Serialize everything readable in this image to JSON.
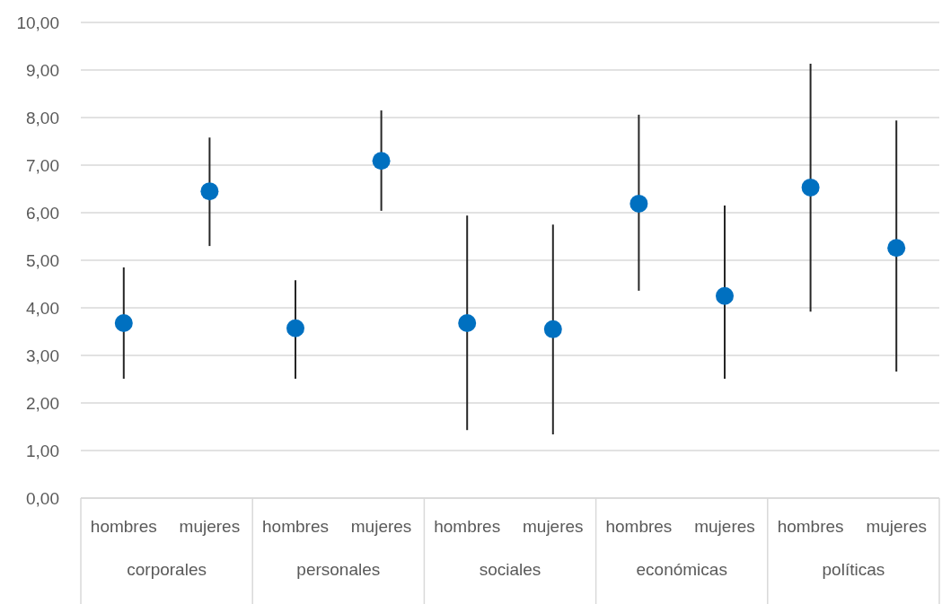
{
  "chart_data": {
    "type": "scatter",
    "categories": [
      "hombres",
      "mujeres",
      "hombres",
      "mujeres",
      "hombres",
      "mujeres",
      "hombres",
      "mujeres",
      "hombres",
      "mujeres"
    ],
    "series": [
      {
        "color": "#0070c0",
        "values": [
          3.68,
          6.45,
          3.57,
          7.09,
          3.68,
          3.55,
          6.19,
          4.25,
          6.53,
          5.26
        ],
        "errors": [
          [
            2.51,
            4.85
          ],
          [
            5.3,
            7.58
          ],
          [
            2.51,
            4.58
          ],
          [
            6.04,
            8.15
          ],
          [
            1.43,
            5.94
          ],
          [
            1.34,
            5.75
          ],
          [
            4.36,
            8.06
          ],
          [
            2.51,
            6.15
          ],
          [
            3.92,
            9.13
          ],
          [
            2.66,
            7.94
          ]
        ]
      }
    ],
    "annotations": [
      "corporales",
      "personales",
      "sociales",
      "económicas",
      "políticas"
    ],
    "ylim": [
      0,
      10
    ],
    "yticks": [
      {
        "value": 0,
        "label": "0,00"
      },
      {
        "value": 1,
        "label": "1,00"
      },
      {
        "value": 2,
        "label": "2,00"
      },
      {
        "value": 3,
        "label": "3,00"
      },
      {
        "value": 4,
        "label": "4,00"
      },
      {
        "value": 5,
        "label": "5,00"
      },
      {
        "value": 6,
        "label": "6,00"
      },
      {
        "value": 7,
        "label": "7,00"
      },
      {
        "value": 8,
        "label": "8,00"
      },
      {
        "value": 9,
        "label": "9,00"
      },
      {
        "value": 10,
        "label": "10,00"
      }
    ],
    "grid": "y",
    "marker": "circle"
  }
}
